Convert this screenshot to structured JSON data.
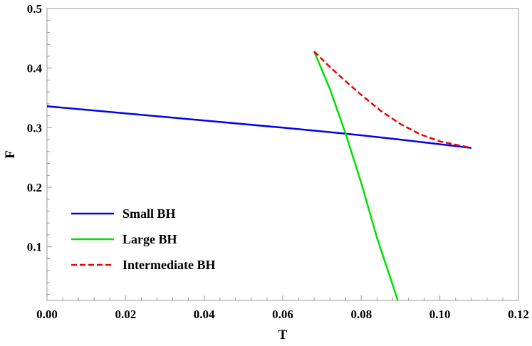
{
  "chart_data": {
    "type": "line",
    "xlabel": "T",
    "ylabel": "F",
    "xlim": [
      0,
      0.12
    ],
    "ylim": [
      0.01,
      0.5
    ],
    "xticks": [
      0.0,
      0.02,
      0.04,
      0.06,
      0.08,
      0.1,
      0.12
    ],
    "xtick_labels": [
      "0.00",
      "0.02",
      "0.04",
      "0.06",
      "0.08",
      "0.10",
      "0.12"
    ],
    "yticks": [
      0.1,
      0.2,
      0.3,
      0.4,
      0.5
    ],
    "ytick_labels": [
      "0.1",
      "0.2",
      "0.3",
      "0.4",
      "0.5"
    ],
    "legend_position": "bottom-left",
    "grid": false,
    "series": [
      {
        "name": "Small BH",
        "color": "#0000ee",
        "dash": "solid",
        "x": [
          0.0,
          0.02,
          0.04,
          0.06,
          0.076,
          0.09,
          0.108
        ],
        "y": [
          0.336,
          0.324,
          0.312,
          0.3,
          0.29,
          0.28,
          0.266
        ]
      },
      {
        "name": "Large BH",
        "color": "#00e000",
        "dash": "solid",
        "x": [
          0.068,
          0.072,
          0.076,
          0.08,
          0.084,
          0.0893
        ],
        "y": [
          0.428,
          0.365,
          0.29,
          0.207,
          0.115,
          0.01
        ]
      },
      {
        "name": "Intermediate BH",
        "color": "#ee0000",
        "dash": "dashed",
        "x": [
          0.068,
          0.072,
          0.076,
          0.08,
          0.085,
          0.09,
          0.095,
          0.1,
          0.108
        ],
        "y": [
          0.428,
          0.402,
          0.378,
          0.355,
          0.328,
          0.306,
          0.289,
          0.277,
          0.266
        ]
      }
    ]
  }
}
